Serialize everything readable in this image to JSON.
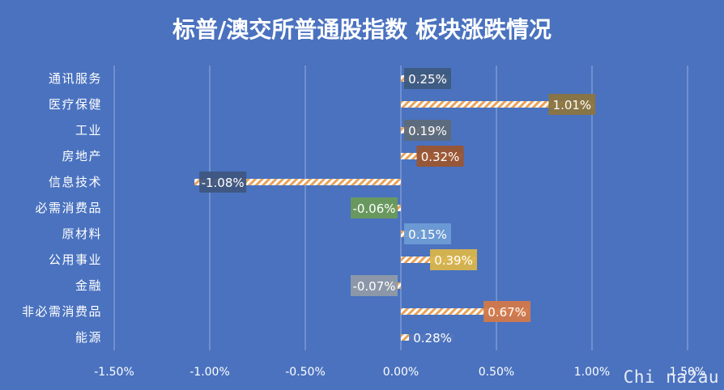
{
  "chart_data": {
    "type": "bar",
    "orientation": "horizontal",
    "title": "标普/澳交所普通股指数 板块涨跌情况",
    "categories": [
      "通讯服务",
      "医疗保健",
      "工业",
      "房地产",
      "信息技术",
      "必需消费品",
      "原材料",
      "公用事业",
      "金融",
      "非必需消费品",
      "能源"
    ],
    "values": [
      0.25,
      1.01,
      0.19,
      0.32,
      -1.08,
      -0.06,
      0.15,
      0.39,
      -0.07,
      0.67,
      0.28
    ],
    "value_labels": [
      "0.25%",
      "1.01%",
      "0.19%",
      "0.32%",
      "-1.08%",
      "-0.06%",
      "0.15%",
      "0.39%",
      "-0.07%",
      "0.67%",
      "0.28%"
    ],
    "label_colors": [
      "#3d5a80",
      "#8a7440",
      "#5e6a7a",
      "#9a5530",
      "#3e567f",
      "#6a9a5a",
      "#6b9bd4",
      "#d9b44a",
      "#8f9aa8",
      "#d2784a",
      "#4a72bf"
    ],
    "xlim": [
      -1.5,
      1.5
    ],
    "xticks": [
      -1.5,
      -1.0,
      -0.5,
      0.0,
      0.5,
      1.0,
      1.5
    ],
    "xtick_labels": [
      "-1.50%",
      "-1.00%",
      "-0.50%",
      "0.00%",
      "0.50%",
      "1.00%",
      "1.50%"
    ],
    "grid": true,
    "bar_pattern": "orange-white-hatch"
  },
  "watermark": "Chi na2au"
}
